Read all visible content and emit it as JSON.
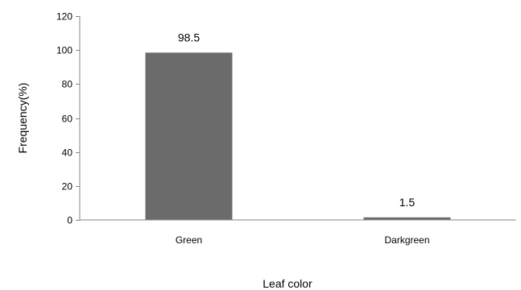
{
  "chart_data": {
    "type": "bar",
    "title": "",
    "xlabel": "Leaf color",
    "ylabel": "Frequency(%)",
    "categories": [
      "Green",
      "Darkgreen"
    ],
    "values": [
      98.5,
      1.5
    ],
    "value_labels": [
      "98.5",
      "1.5"
    ],
    "ylim": [
      0,
      120
    ],
    "yticks": [
      0,
      20,
      40,
      60,
      80,
      100,
      120
    ],
    "grid": false,
    "legend": "none",
    "bar_color": "#6b6b6b",
    "axis_color": "#868686"
  }
}
